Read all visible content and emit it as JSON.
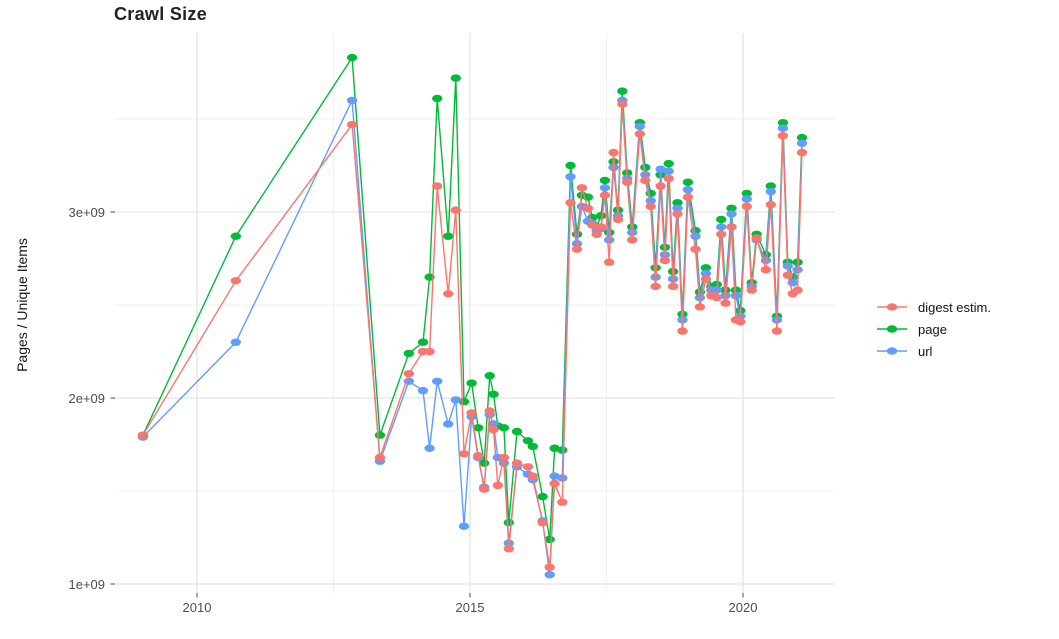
{
  "title": "Crawl Size",
  "axes": {
    "y_label": "Pages / Unique Items",
    "x_label": ""
  },
  "legend": {
    "position": "right",
    "items": [
      {
        "label": "digest estim.",
        "color": "#F8766D"
      },
      {
        "label": "page",
        "color": "#00BA38"
      },
      {
        "label": "url",
        "color": "#619CFF"
      }
    ]
  },
  "chart_data": {
    "type": "line",
    "title": "Crawl Size",
    "xlabel": "",
    "ylabel": "Pages / Unique Items",
    "grid": true,
    "legend_position": "right-center",
    "x_unit": "calendar year (decimal)",
    "y_unit": "count, billions (value 1.8 means 1.8e+09)",
    "xlim": [
      2008.5,
      2021.65
    ],
    "ylim": [
      0.95,
      3.97
    ],
    "x_ticks": [
      {
        "value": 2010,
        "label": "2010"
      },
      {
        "value": 2015,
        "label": "2015"
      },
      {
        "value": 2020,
        "label": "2020"
      }
    ],
    "x_minor_gridlines": [
      2012.5,
      2017.5
    ],
    "y_ticks": [
      {
        "value": 1.0,
        "label": "1e+09"
      },
      {
        "value": 2.0,
        "label": "2e+09"
      },
      {
        "value": 3.0,
        "label": "3e+09"
      }
    ],
    "y_minor_gridlines": [
      1.5,
      2.5,
      3.5
    ],
    "x": [
      2009.01,
      2010.71,
      2012.84,
      2013.35,
      2013.88,
      2014.14,
      2014.26,
      2014.4,
      2014.6,
      2014.74,
      2014.89,
      2015.03,
      2015.15,
      2015.26,
      2015.36,
      2015.43,
      2015.51,
      2015.62,
      2015.71,
      2015.86,
      2016.06,
      2016.15,
      2016.33,
      2016.46,
      2016.55,
      2016.69,
      2016.84,
      2016.96,
      2017.05,
      2017.16,
      2017.24,
      2017.32,
      2017.4,
      2017.47,
      2017.55,
      2017.63,
      2017.71,
      2017.79,
      2017.88,
      2017.97,
      2018.11,
      2018.21,
      2018.31,
      2018.4,
      2018.49,
      2018.57,
      2018.64,
      2018.72,
      2018.8,
      2018.89,
      2018.99,
      2019.13,
      2019.21,
      2019.32,
      2019.42,
      2019.52,
      2019.6,
      2019.68,
      2019.79,
      2019.87,
      2019.95,
      2020.07,
      2020.16,
      2020.25,
      2020.42,
      2020.51,
      2020.62,
      2020.73,
      2020.82,
      2020.91,
      2021.0,
      2021.08
    ],
    "series": [
      {
        "name": "digest estim.",
        "color": "#F8766D",
        "values": [
          1.8,
          2.63,
          3.47,
          1.68,
          2.13,
          2.25,
          2.25,
          3.14,
          2.56,
          3.01,
          1.7,
          1.92,
          1.69,
          1.51,
          1.93,
          1.83,
          1.53,
          1.68,
          1.19,
          1.65,
          1.63,
          1.58,
          1.33,
          1.09,
          1.54,
          1.44,
          3.05,
          2.8,
          3.13,
          3.02,
          2.93,
          2.88,
          2.92,
          3.09,
          2.73,
          3.32,
          2.96,
          3.58,
          3.16,
          2.85,
          3.42,
          3.17,
          3.03,
          2.6,
          3.14,
          2.74,
          3.18,
          2.6,
          2.99,
          2.36,
          3.08,
          2.8,
          2.49,
          2.64,
          2.55,
          2.54,
          2.88,
          2.51,
          2.92,
          2.42,
          2.41,
          3.03,
          2.58,
          2.86,
          2.69,
          3.04,
          2.36,
          3.41,
          2.66,
          2.56,
          2.58,
          3.32
        ]
      },
      {
        "name": "page",
        "color": "#00BA38",
        "values": [
          1.8,
          2.87,
          3.83,
          1.8,
          2.24,
          2.3,
          2.65,
          3.61,
          2.87,
          3.72,
          1.98,
          2.08,
          1.84,
          1.65,
          2.12,
          2.02,
          1.85,
          1.84,
          1.33,
          1.82,
          1.77,
          1.74,
          1.47,
          1.24,
          1.73,
          1.72,
          3.25,
          2.88,
          3.09,
          3.08,
          2.97,
          2.92,
          2.98,
          3.17,
          2.89,
          3.27,
          3.01,
          3.65,
          3.21,
          2.92,
          3.48,
          3.24,
          3.1,
          2.7,
          3.2,
          2.81,
          3.26,
          2.68,
          3.05,
          2.45,
          3.16,
          2.9,
          2.57,
          2.7,
          2.6,
          2.61,
          2.96,
          2.58,
          3.02,
          2.58,
          2.47,
          3.1,
          2.62,
          2.88,
          2.77,
          3.14,
          2.44,
          3.48,
          2.73,
          2.65,
          2.73,
          3.4
        ]
      },
      {
        "name": "url",
        "color": "#619CFF",
        "values": [
          1.79,
          2.3,
          3.6,
          1.66,
          2.09,
          2.04,
          1.73,
          2.09,
          1.86,
          1.99,
          1.31,
          1.9,
          1.68,
          1.52,
          1.91,
          1.86,
          1.68,
          1.65,
          1.22,
          1.63,
          1.59,
          1.56,
          1.34,
          1.05,
          1.58,
          1.57,
          3.19,
          2.83,
          3.03,
          2.95,
          2.94,
          2.9,
          2.91,
          3.13,
          2.85,
          3.24,
          2.98,
          3.6,
          3.18,
          2.89,
          3.46,
          3.2,
          3.06,
          2.65,
          3.23,
          2.77,
          3.22,
          2.64,
          3.02,
          2.42,
          3.12,
          2.87,
          2.54,
          2.67,
          2.58,
          2.58,
          2.92,
          2.55,
          2.99,
          2.55,
          2.44,
          3.07,
          2.6,
          2.85,
          2.74,
          3.11,
          2.42,
          3.45,
          2.71,
          2.62,
          2.69,
          3.37
        ]
      }
    ]
  }
}
